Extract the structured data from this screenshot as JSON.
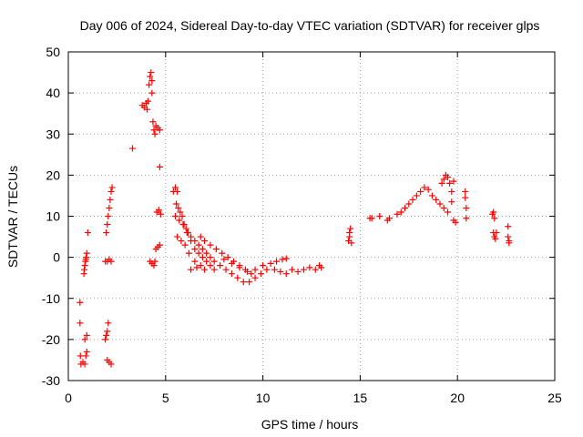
{
  "chart_data": {
    "type": "scatter",
    "title": "Day 006 of 2024, Sidereal Day-to-day VTEC variation (SDTVAR) for receiver glps",
    "xlabel": "GPS time / hours",
    "ylabel": "SDTVAR / TECUs",
    "xlim": [
      0,
      25
    ],
    "ylim": [
      -30,
      50
    ],
    "xticks": [
      0,
      5,
      10,
      15,
      20,
      25
    ],
    "yticks": [
      -30,
      -20,
      -10,
      0,
      10,
      20,
      30,
      40,
      50
    ],
    "xtick_labels": [
      "0",
      "5",
      "10",
      "15",
      "20",
      "25"
    ],
    "ytick_labels": [
      "-30",
      "-20",
      "-10",
      "0",
      "10",
      "20",
      "30",
      "40",
      "50"
    ],
    "grid": true,
    "marker": "+",
    "series": [
      {
        "name": "glps",
        "color": "#ff0000",
        "points": [
          [
            0.6,
            -11
          ],
          [
            0.6,
            -16
          ],
          [
            0.62,
            -24
          ],
          [
            0.65,
            -26
          ],
          [
            0.75,
            -25.5
          ],
          [
            0.85,
            -26
          ],
          [
            0.9,
            -24
          ],
          [
            0.95,
            -23
          ],
          [
            0.85,
            -20
          ],
          [
            0.95,
            -19
          ],
          [
            0.8,
            -4
          ],
          [
            0.82,
            -3
          ],
          [
            0.85,
            -2
          ],
          [
            0.88,
            -1
          ],
          [
            0.9,
            -0.5
          ],
          [
            0.92,
            0
          ],
          [
            0.95,
            1
          ],
          [
            1.0,
            6
          ],
          [
            1.9,
            -20
          ],
          [
            1.95,
            -19
          ],
          [
            2.0,
            -18
          ],
          [
            2.05,
            -16
          ],
          [
            2.0,
            -25
          ],
          [
            2.1,
            -25.5
          ],
          [
            2.2,
            -26
          ],
          [
            1.95,
            6
          ],
          [
            2.0,
            8
          ],
          [
            2.05,
            10
          ],
          [
            2.1,
            12
          ],
          [
            2.15,
            14
          ],
          [
            2.2,
            16
          ],
          [
            2.25,
            17
          ],
          [
            1.9,
            -1
          ],
          [
            2.0,
            -1
          ],
          [
            2.1,
            -0.5
          ],
          [
            2.2,
            -1
          ],
          [
            3.3,
            26.5
          ],
          [
            3.8,
            37
          ],
          [
            3.9,
            36.5
          ],
          [
            4.0,
            37.5
          ],
          [
            4.05,
            36
          ],
          [
            4.1,
            38
          ],
          [
            4.15,
            42
          ],
          [
            4.2,
            44
          ],
          [
            4.25,
            45
          ],
          [
            4.3,
            43
          ],
          [
            4.3,
            40
          ],
          [
            4.35,
            33
          ],
          [
            4.4,
            31
          ],
          [
            4.45,
            30
          ],
          [
            4.5,
            32
          ],
          [
            4.6,
            31.5
          ],
          [
            4.7,
            31
          ],
          [
            4.7,
            22
          ],
          [
            4.2,
            -1
          ],
          [
            4.3,
            -1.5
          ],
          [
            4.4,
            -2
          ],
          [
            4.45,
            -1
          ],
          [
            4.5,
            2
          ],
          [
            4.6,
            2.5
          ],
          [
            4.7,
            3
          ],
          [
            4.55,
            11
          ],
          [
            4.65,
            11.5
          ],
          [
            4.75,
            10.5
          ],
          [
            5.4,
            16
          ],
          [
            5.5,
            17
          ],
          [
            5.6,
            16
          ],
          [
            5.55,
            13
          ],
          [
            5.65,
            12
          ],
          [
            5.75,
            11
          ],
          [
            5.85,
            10
          ],
          [
            5.95,
            8
          ],
          [
            6.05,
            7
          ],
          [
            6.15,
            6
          ],
          [
            6.3,
            5
          ],
          [
            6.5,
            4
          ],
          [
            6.7,
            3
          ],
          [
            6.9,
            2
          ],
          [
            7.1,
            1
          ],
          [
            7.3,
            0
          ],
          [
            5.5,
            10
          ],
          [
            5.7,
            9
          ],
          [
            5.9,
            8
          ],
          [
            6.1,
            6
          ],
          [
            6.3,
            4
          ],
          [
            6.5,
            2
          ],
          [
            6.7,
            1
          ],
          [
            6.9,
            0
          ],
          [
            7.1,
            -1
          ],
          [
            7.3,
            -2
          ],
          [
            7.5,
            -3
          ],
          [
            5.6,
            5
          ],
          [
            5.8,
            4
          ],
          [
            6.0,
            3
          ],
          [
            6.2,
            1
          ],
          [
            6.5,
            -1
          ],
          [
            6.8,
            -2
          ],
          [
            7.0,
            -3
          ],
          [
            6.3,
            -3
          ],
          [
            6.6,
            -2.5
          ],
          [
            6.8,
            5
          ],
          [
            7.0,
            4
          ],
          [
            7.3,
            3
          ],
          [
            7.6,
            2
          ],
          [
            7.9,
            1
          ],
          [
            8.2,
            0
          ],
          [
            8.5,
            -1
          ],
          [
            8.8,
            -2
          ],
          [
            9.1,
            -3
          ],
          [
            9.4,
            -4
          ],
          [
            7.5,
            -1
          ],
          [
            7.8,
            -2
          ],
          [
            8.1,
            -3
          ],
          [
            8.4,
            -4
          ],
          [
            8.7,
            -5
          ],
          [
            9.0,
            -6
          ],
          [
            9.3,
            -6
          ],
          [
            9.6,
            -5
          ],
          [
            9.9,
            -4
          ],
          [
            10.2,
            -3
          ],
          [
            8.0,
            -0.5
          ],
          [
            8.4,
            -1.5
          ],
          [
            8.8,
            -2.5
          ],
          [
            9.2,
            -3.5
          ],
          [
            9.6,
            -3
          ],
          [
            10.0,
            -2
          ],
          [
            10.4,
            -1.5
          ],
          [
            10.7,
            -1
          ],
          [
            11.0,
            -0.5
          ],
          [
            11.2,
            -0.3
          ],
          [
            10.6,
            -3
          ],
          [
            10.9,
            -3.5
          ],
          [
            11.2,
            -4
          ],
          [
            11.5,
            -3
          ],
          [
            11.8,
            -3.5
          ],
          [
            12.1,
            -3
          ],
          [
            12.4,
            -2.5
          ],
          [
            12.7,
            -3
          ],
          [
            12.9,
            -2
          ],
          [
            13.0,
            -2.5
          ],
          [
            14.4,
            4
          ],
          [
            14.45,
            5
          ],
          [
            14.5,
            7
          ],
          [
            14.55,
            3.5
          ],
          [
            14.45,
            6
          ],
          [
            15.5,
            9.5
          ],
          [
            15.6,
            9.5
          ],
          [
            16.0,
            10
          ],
          [
            16.4,
            9
          ],
          [
            16.5,
            9.5
          ],
          [
            16.9,
            10.5
          ],
          [
            17.1,
            11
          ],
          [
            17.3,
            12
          ],
          [
            17.5,
            13
          ],
          [
            17.7,
            14
          ],
          [
            17.9,
            15
          ],
          [
            18.1,
            16
          ],
          [
            18.3,
            17
          ],
          [
            18.5,
            16.5
          ],
          [
            18.7,
            15
          ],
          [
            18.9,
            14
          ],
          [
            19.1,
            13
          ],
          [
            19.3,
            12
          ],
          [
            19.5,
            11
          ],
          [
            19.2,
            18
          ],
          [
            19.3,
            19
          ],
          [
            19.4,
            20
          ],
          [
            19.5,
            19.5
          ],
          [
            19.6,
            18
          ],
          [
            19.7,
            16
          ],
          [
            19.8,
            18.5
          ],
          [
            19.7,
            13.5
          ],
          [
            19.8,
            9
          ],
          [
            19.9,
            8.5
          ],
          [
            20.4,
            16
          ],
          [
            20.4,
            14.5
          ],
          [
            20.45,
            12
          ],
          [
            20.45,
            9.5
          ],
          [
            21.8,
            10.5
          ],
          [
            21.85,
            11
          ],
          [
            21.9,
            9.5
          ],
          [
            21.85,
            6
          ],
          [
            21.9,
            5
          ],
          [
            21.95,
            4.5
          ],
          [
            22.0,
            6
          ],
          [
            22.6,
            7.5
          ],
          [
            22.6,
            5
          ],
          [
            22.65,
            3.5
          ],
          [
            22.65,
            4
          ]
        ]
      }
    ]
  }
}
